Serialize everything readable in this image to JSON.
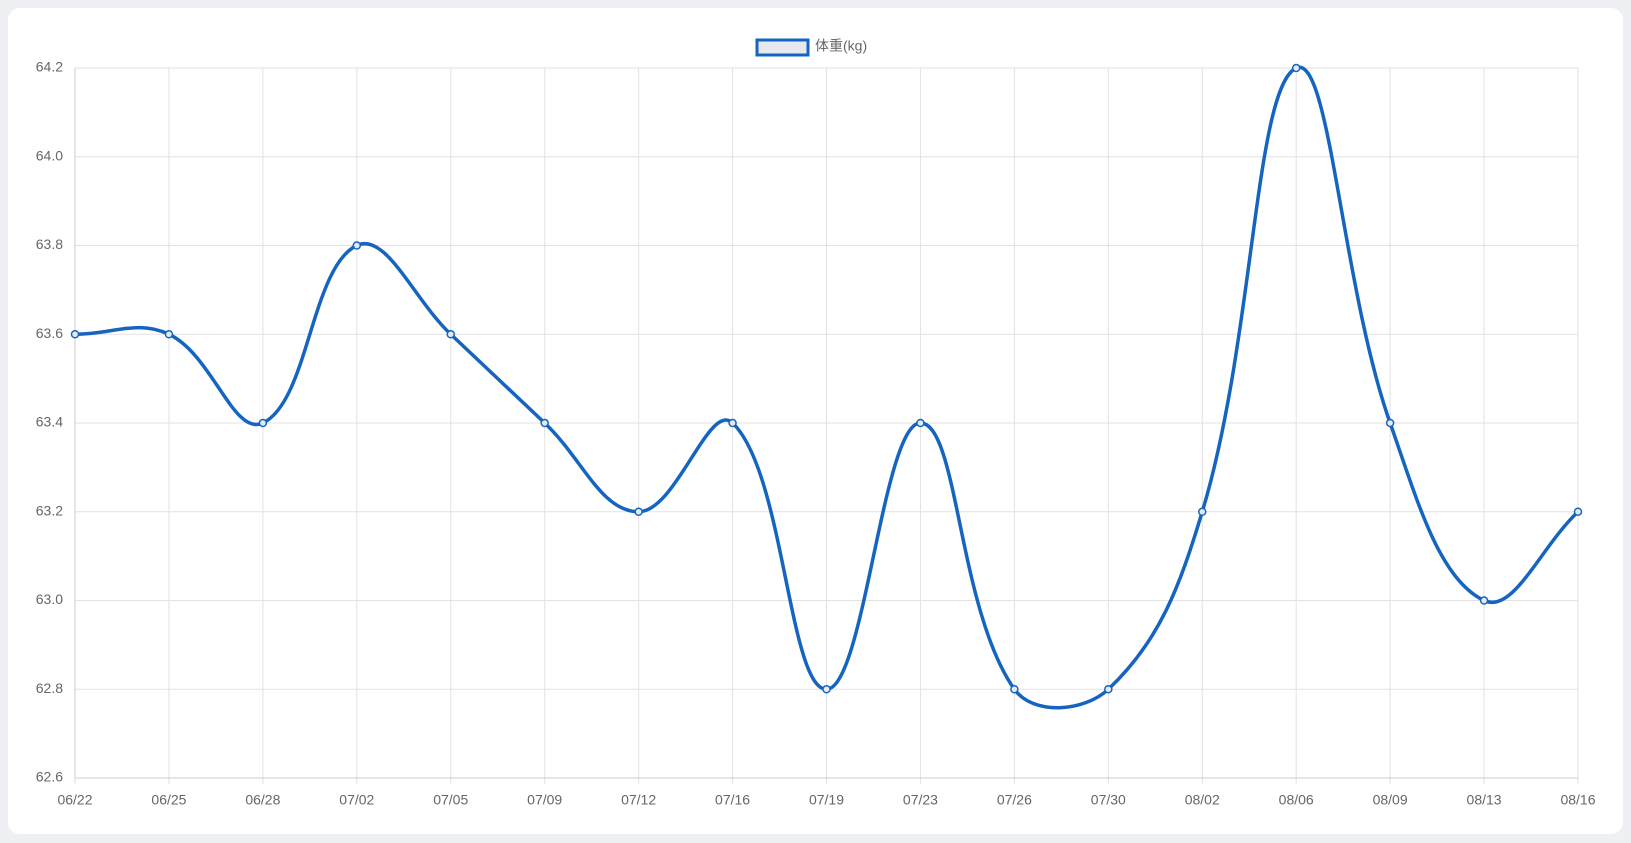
{
  "chart_data": {
    "type": "line",
    "categories": [
      "06/22",
      "06/25",
      "06/28",
      "07/02",
      "07/05",
      "07/09",
      "07/12",
      "07/16",
      "07/19",
      "07/23",
      "07/26",
      "07/30",
      "08/02",
      "08/06",
      "08/09",
      "08/13",
      "08/16"
    ],
    "series": [
      {
        "name": "体重(kg)",
        "color": "#1565c0",
        "values": [
          63.6,
          63.6,
          63.4,
          63.8,
          63.6,
          63.4,
          63.2,
          63.4,
          62.8,
          63.4,
          62.8,
          62.8,
          63.2,
          64.2,
          63.4,
          63.0,
          63.2
        ]
      }
    ],
    "ylim": [
      62.6,
      64.2
    ],
    "yticks": [
      62.6,
      62.8,
      {
        "value": 63.0,
        "label": "63.0"
      },
      63.2,
      63.4,
      63.6,
      63.8,
      {
        "value": 64.0,
        "label": "64.0"
      },
      64.2
    ],
    "grid": true,
    "legend": "top"
  }
}
